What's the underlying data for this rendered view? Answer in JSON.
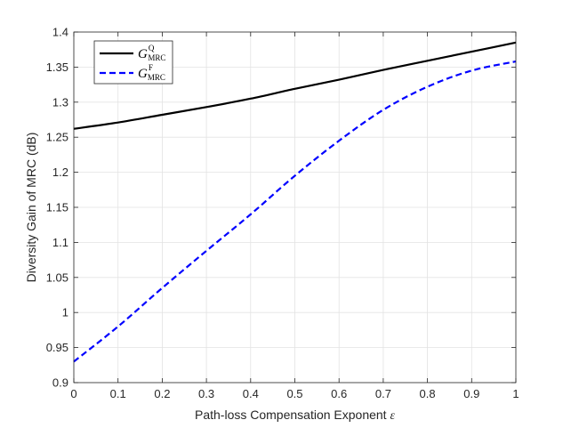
{
  "chart_data": {
    "type": "line",
    "title": "",
    "xlabel": "Path-loss Compensation Exponent",
    "xlabel_symbol": "ε",
    "ylabel": "Diversity Gain of MRC (dB)",
    "xlim": [
      0,
      1
    ],
    "ylim": [
      0.9,
      1.4
    ],
    "xticks": [
      "0",
      "0.1",
      "0.2",
      "0.3",
      "0.4",
      "0.5",
      "0.6",
      "0.7",
      "0.8",
      "0.9",
      "1"
    ],
    "yticks": [
      "0.9",
      "0.95",
      "1",
      "1.05",
      "1.1",
      "1.15",
      "1.2",
      "1.25",
      "1.3",
      "1.35",
      "1.4"
    ],
    "grid": true,
    "legend_position": "top-left",
    "x": [
      0,
      0.1,
      0.2,
      0.3,
      0.4,
      0.5,
      0.6,
      0.7,
      0.8,
      0.9,
      1.0
    ],
    "series": [
      {
        "name": "G",
        "name_sup": "Q",
        "name_sub": "MRC",
        "color": "#000000",
        "dash": "solid",
        "values": [
          1.262,
          1.271,
          1.282,
          1.293,
          1.305,
          1.319,
          1.332,
          1.346,
          1.359,
          1.372,
          1.385
        ]
      },
      {
        "name": "G",
        "name_sup": "F",
        "name_sub": "MRC",
        "color": "#0000ff",
        "dash": "dashed",
        "values": [
          0.93,
          0.98,
          1.035,
          1.088,
          1.14,
          1.195,
          1.245,
          1.289,
          1.322,
          1.345,
          1.358
        ]
      }
    ]
  }
}
